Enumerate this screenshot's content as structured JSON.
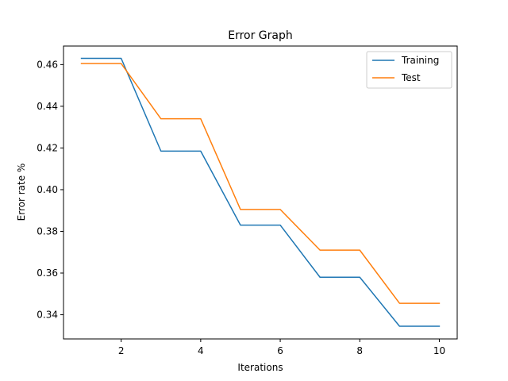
{
  "chart_data": {
    "type": "line",
    "title": "Error Graph",
    "xlabel": "Iterations",
    "ylabel": "Error rate %",
    "x": [
      1,
      2,
      3,
      4,
      5,
      6,
      7,
      8,
      9,
      10
    ],
    "series": [
      {
        "name": "Training",
        "color": "#1f77b4",
        "values": [
          0.463,
          0.463,
          0.4185,
          0.4185,
          0.383,
          0.383,
          0.358,
          0.358,
          0.3345,
          0.3345
        ]
      },
      {
        "name": "Test",
        "color": "#ff7f0e",
        "values": [
          0.4605,
          0.4605,
          0.434,
          0.434,
          0.3905,
          0.3905,
          0.371,
          0.371,
          0.3455,
          0.3455
        ]
      }
    ],
    "xlim": [
      0.55,
      10.45
    ],
    "ylim": [
      0.3284,
      0.4689
    ],
    "xticks": [
      2,
      4,
      6,
      8,
      10
    ],
    "xtick_labels": [
      "2",
      "4",
      "6",
      "8",
      "10"
    ],
    "yticks": [
      0.34,
      0.36,
      0.38,
      0.4,
      0.42,
      0.44,
      0.46
    ],
    "ytick_labels": [
      "0.34",
      "0.36",
      "0.38",
      "0.40",
      "0.42",
      "0.44",
      "0.46"
    ],
    "grid": false,
    "legend_position": "top-right"
  }
}
